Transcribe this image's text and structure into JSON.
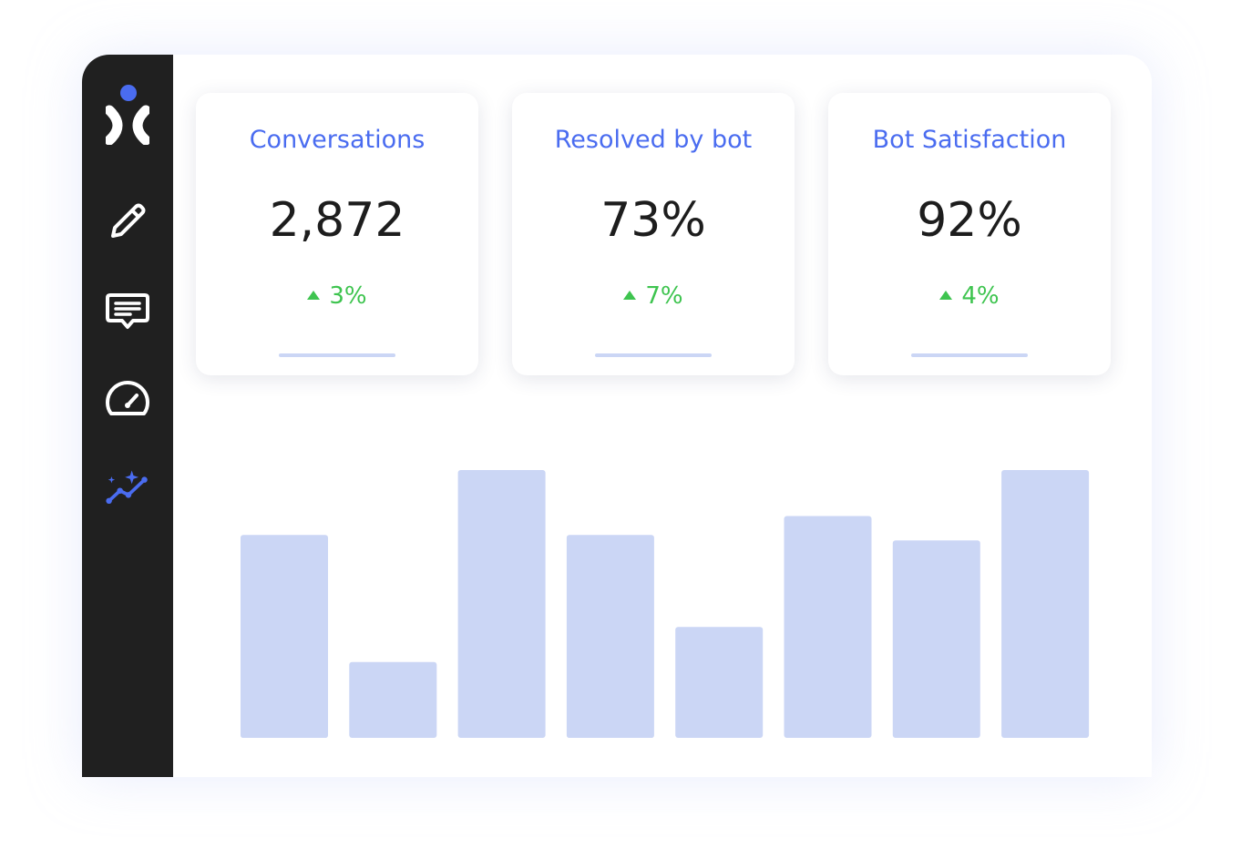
{
  "sidebar": {
    "items": [
      {
        "icon": "logo-icon",
        "active": false
      },
      {
        "icon": "pencil-icon",
        "active": false
      },
      {
        "icon": "chat-icon",
        "active": false
      },
      {
        "icon": "speedometer-icon",
        "active": false
      },
      {
        "icon": "analytics-sparkle-icon",
        "active": true
      }
    ]
  },
  "colors": {
    "sidebar_bg": "#202020",
    "accent": "#4a6cf0",
    "positive": "#3ec44f",
    "bar": "#cbd6f5"
  },
  "stats": [
    {
      "title": "Conversations",
      "value": "2,872",
      "change": "3%"
    },
    {
      "title": "Resolved by bot",
      "value": "73%",
      "change": "7%"
    },
    {
      "title": "Bot Satisfaction",
      "value": "92%",
      "change": "4%"
    }
  ],
  "chart_data": {
    "type": "bar",
    "values": [
      75,
      28,
      99,
      75,
      41,
      82,
      73,
      99
    ],
    "ylim": [
      0,
      100
    ],
    "grid": false,
    "color": "#cbd6f5"
  }
}
